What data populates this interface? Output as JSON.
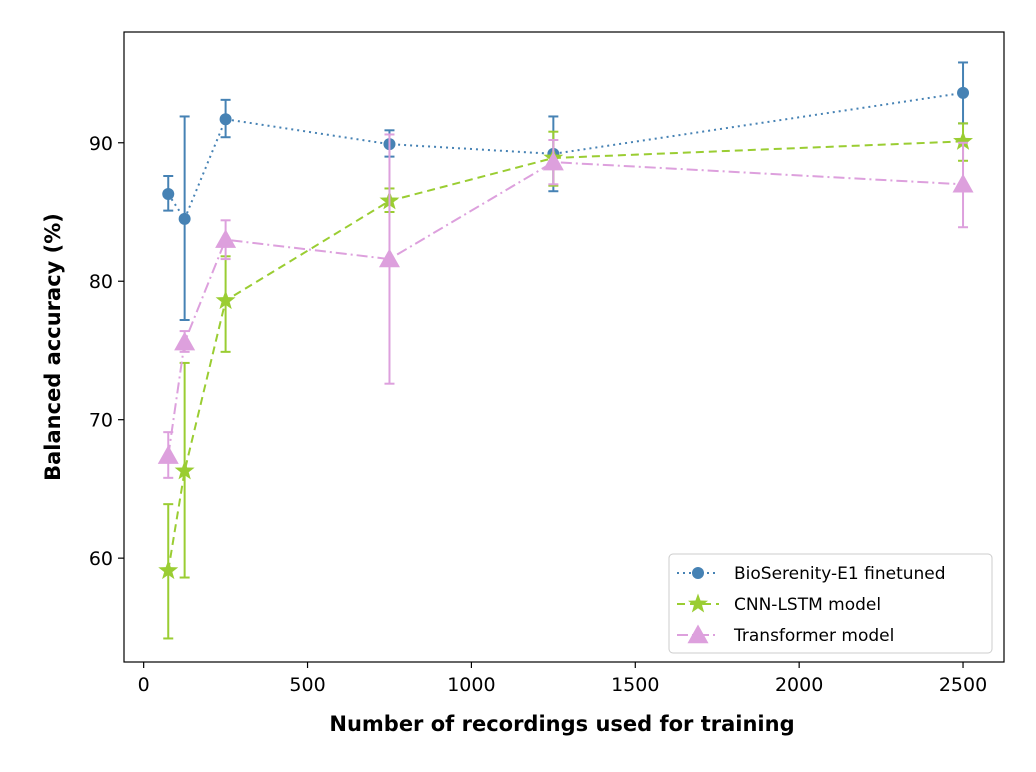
{
  "chart_data": {
    "type": "line",
    "title": "",
    "xlabel": "Number of recordings used for training",
    "ylabel": "Balanced accuracy (%)",
    "xlim": [
      -60,
      2625
    ],
    "ylim": [
      52.5,
      98
    ],
    "xticks": [
      0,
      500,
      1000,
      1500,
      2000,
      2500
    ],
    "yticks": [
      60,
      70,
      80,
      90
    ],
    "grid": false,
    "legend_position": "bottom-right",
    "series": [
      {
        "name": "BioSerenity-E1 finetuned",
        "color": "#4682b4",
        "linestyle": "dotted",
        "marker": "circle",
        "x": [
          75,
          125,
          250,
          750,
          1250,
          2500
        ],
        "y": [
          86.3,
          84.5,
          91.7,
          89.9,
          89.2,
          93.6
        ],
        "err_low": [
          85.1,
          77.2,
          90.4,
          89.0,
          86.5,
          91.4
        ],
        "err_high": [
          87.6,
          91.9,
          93.1,
          90.9,
          91.9,
          95.8
        ]
      },
      {
        "name": "CNN-LSTM model",
        "color": "#9acd32",
        "linestyle": "dashed",
        "marker": "star",
        "x": [
          75,
          125,
          250,
          750,
          1250,
          2500
        ],
        "y": [
          59.1,
          66.3,
          78.6,
          85.8,
          88.9,
          90.1
        ],
        "err_low": [
          54.2,
          58.6,
          74.9,
          85.0,
          86.9,
          88.7
        ],
        "err_high": [
          63.9,
          74.1,
          81.8,
          86.7,
          90.8,
          91.4
        ]
      },
      {
        "name": "Transformer model",
        "color": "#dda0dd",
        "linestyle": "dashdot",
        "marker": "triangle",
        "x": [
          75,
          125,
          250,
          750,
          1250,
          2500
        ],
        "y": [
          67.4,
          75.6,
          83.0,
          81.6,
          88.6,
          87.0
        ],
        "err_low": [
          65.8,
          74.9,
          81.6,
          72.6,
          87.0,
          83.9
        ],
        "err_high": [
          69.1,
          76.4,
          84.4,
          90.6,
          90.2,
          90.0
        ]
      }
    ]
  }
}
